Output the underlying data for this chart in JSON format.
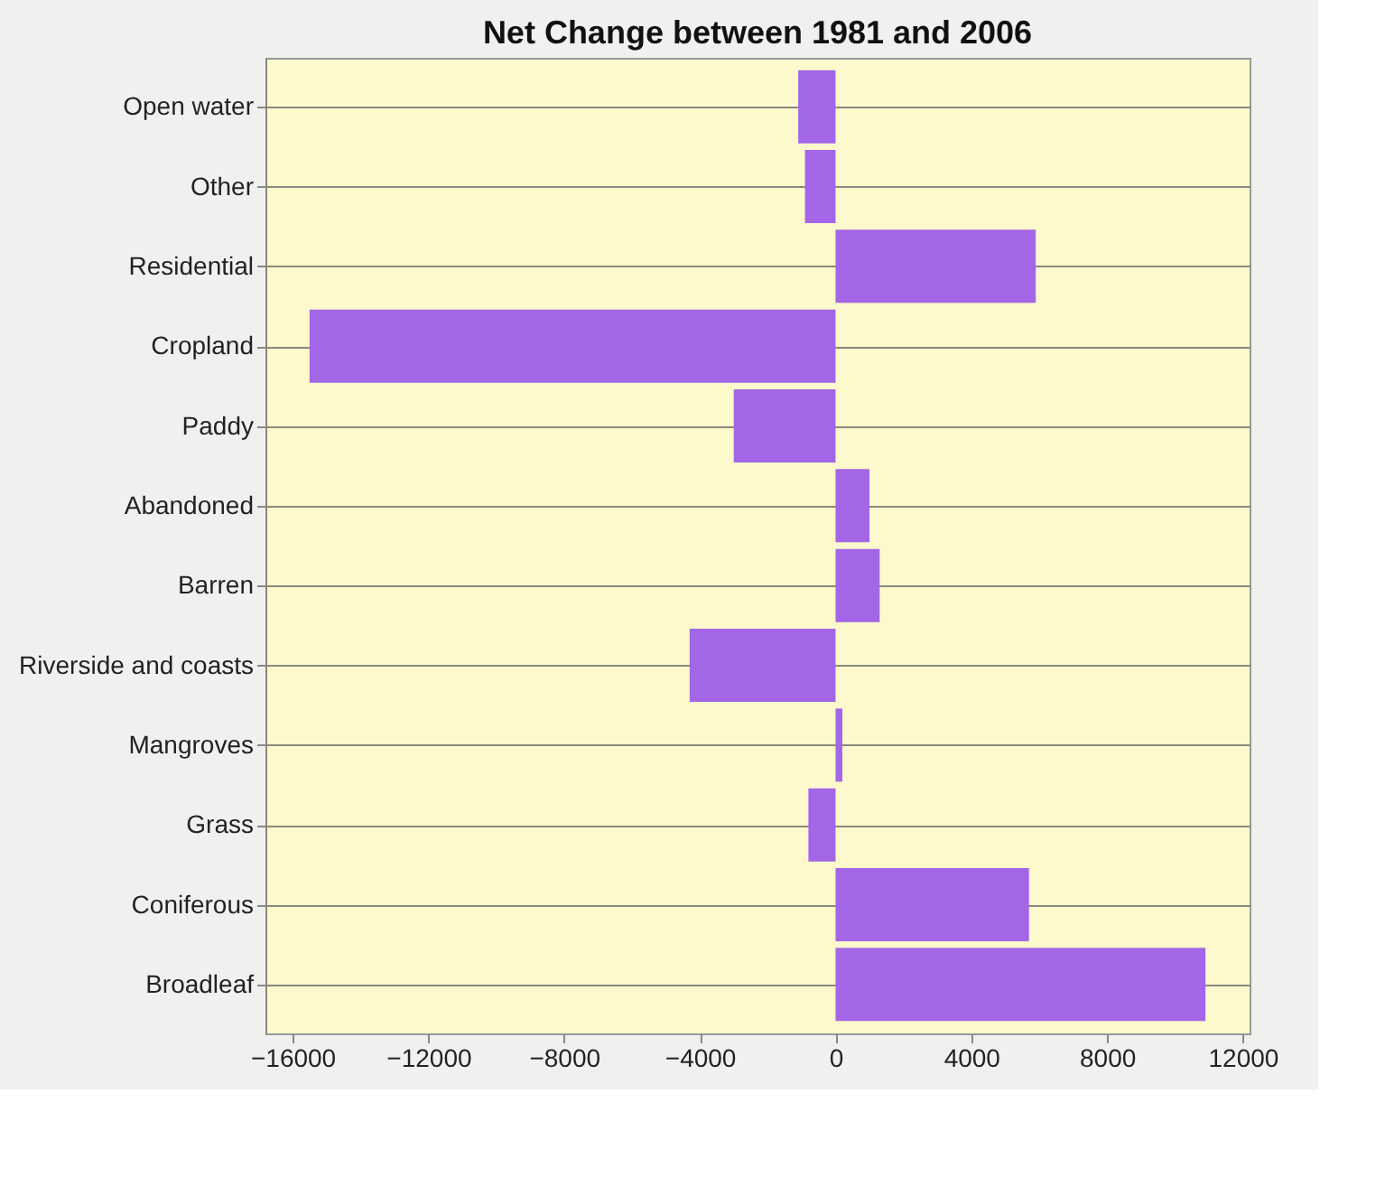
{
  "chart_data": {
    "type": "bar",
    "orientation": "horizontal",
    "title": "Net Change between 1981 and 2006",
    "categories": [
      "Open water",
      "Other",
      "Residential",
      "Cropland",
      "Paddy",
      "Abandoned",
      "Barren",
      "Riverside and coasts",
      "Mangroves",
      "Grass",
      "Coniferous",
      "Broadleaf"
    ],
    "values": [
      -1100,
      -900,
      5900,
      -15500,
      -3000,
      1000,
      1300,
      -4300,
      200,
      -800,
      5700,
      10900
    ],
    "color": "#a366e6",
    "xlim": [
      -16800,
      12200
    ],
    "xticks": [
      -16000,
      -12000,
      -8000,
      -4000,
      0,
      4000,
      8000,
      12000
    ],
    "grid": "y"
  }
}
